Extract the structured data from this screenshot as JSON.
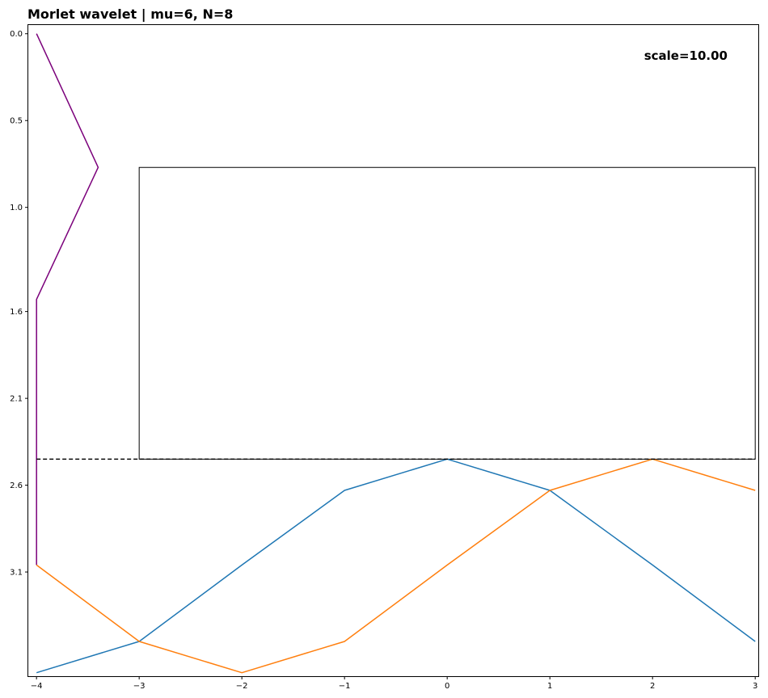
{
  "chart_data": {
    "type": "line",
    "title": "Morlet wavelet | mu=6, N=8",
    "annotation": "scale=10.00",
    "xlabel": "",
    "ylabel": "",
    "xlim": [
      -4.08,
      3.03
    ],
    "ylim": [
      3.7,
      -0.05
    ],
    "y_inverted": true,
    "x_ticks": [
      -4,
      -3,
      -2,
      -1,
      0,
      1,
      2,
      3
    ],
    "x_tick_labels": [
      "−4",
      "−3",
      "−2",
      "−1",
      "0",
      "1",
      "2",
      "3"
    ],
    "y_ticks": [
      0.0,
      0.5,
      1.0,
      1.6,
      2.1,
      2.6,
      3.1
    ],
    "y_tick_labels": [
      "0.0",
      "0.5",
      "1.0",
      "1.6",
      "2.1",
      "2.6",
      "3.1"
    ],
    "grid": false,
    "dashed_hline": {
      "y": 2.45,
      "xmin": -4.0,
      "xmax": 3.0,
      "color": "#000000"
    },
    "rectangle": {
      "x0": -3.0,
      "x1": 3.0,
      "y0": 0.77,
      "y1": 2.45,
      "color": "#000000"
    },
    "series": [
      {
        "color": "#7b007b",
        "x": [
          -4.0,
          -3.4,
          -4.0,
          -4.0
        ],
        "y": [
          0.0,
          0.77,
          1.53,
          3.06
        ]
      },
      {
        "color": "#1f77b4",
        "x": [
          -4,
          -3,
          -2,
          -1,
          0,
          1,
          2,
          3
        ],
        "y": [
          3.68,
          3.5,
          3.06,
          2.63,
          2.45,
          2.63,
          3.06,
          3.5
        ]
      },
      {
        "color": "#ff7f0e",
        "x": [
          -4,
          -3,
          -2,
          -1,
          0,
          1,
          2,
          3
        ],
        "y": [
          3.06,
          3.5,
          3.68,
          3.5,
          3.06,
          2.63,
          2.45,
          2.63
        ]
      }
    ]
  }
}
